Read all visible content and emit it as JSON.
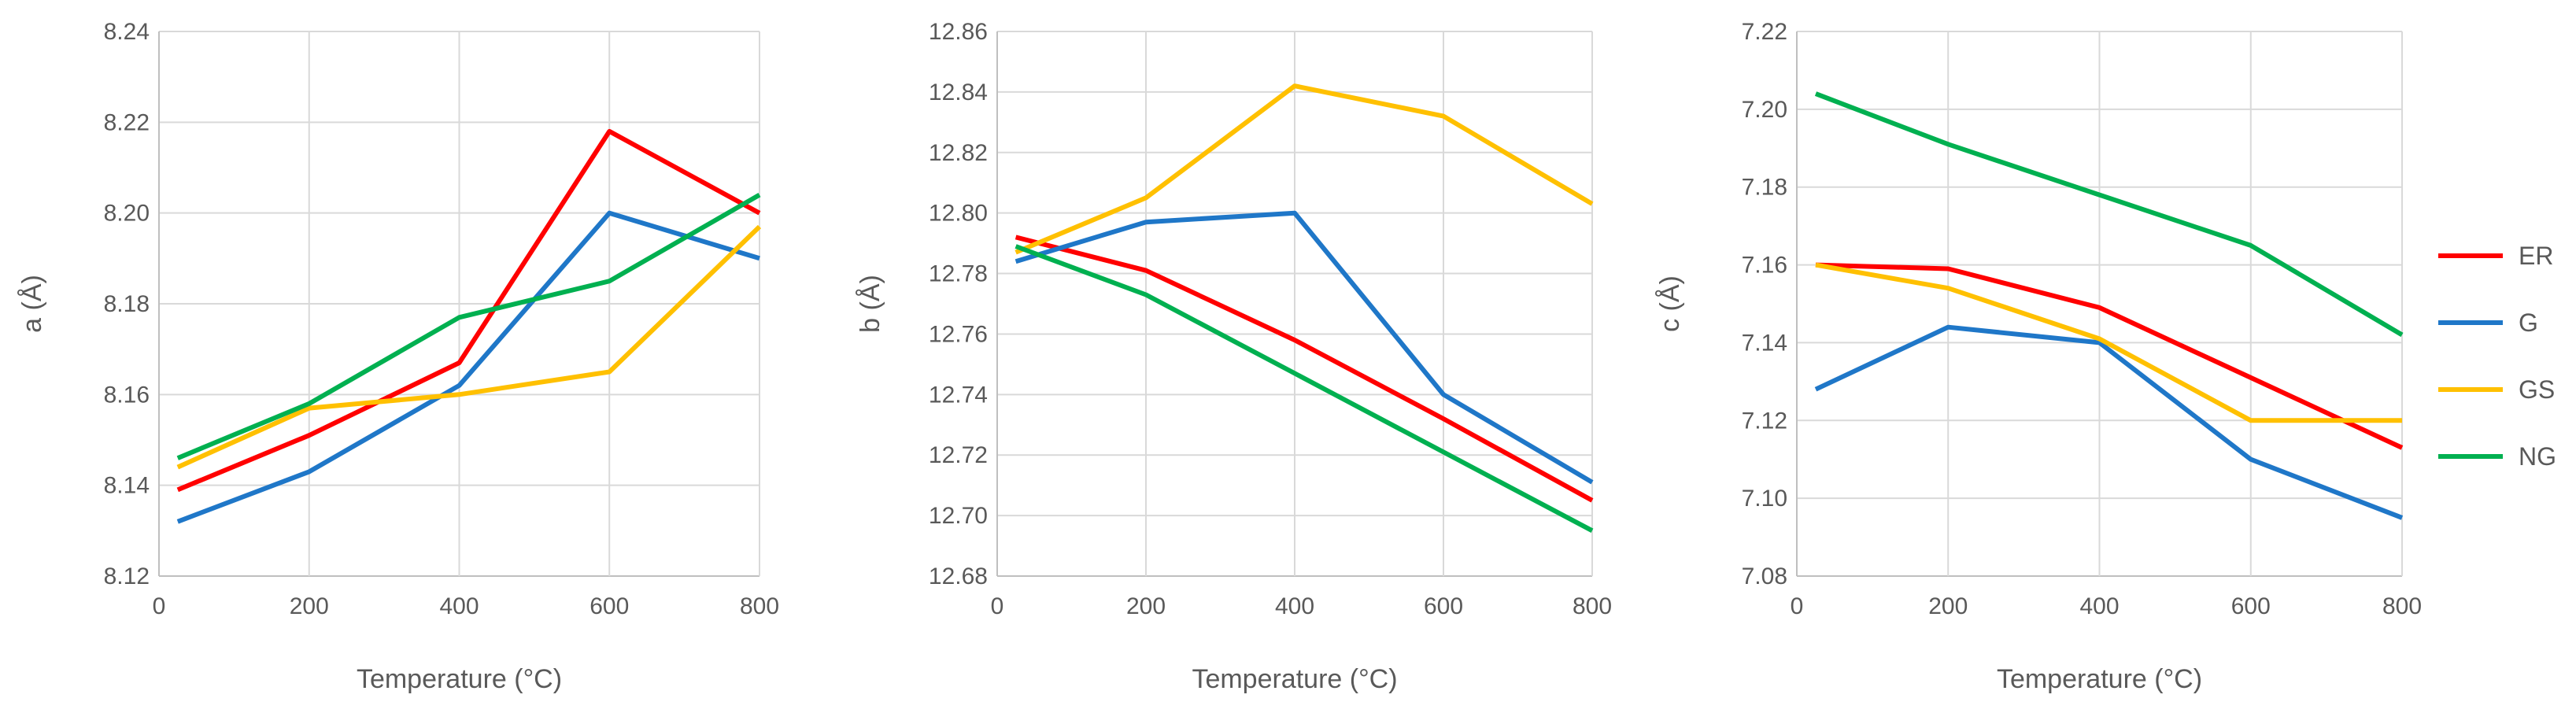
{
  "colors": {
    "ER": "#ff0000",
    "G": "#1f77c8",
    "GS": "#ffc000",
    "NG": "#00b050"
  },
  "legend": [
    "ER",
    "G",
    "GS",
    "NG"
  ],
  "chart_data": [
    {
      "type": "line",
      "xlabel": "Temperature (°C)",
      "ylabel": "a (Å)",
      "xlim": [
        0,
        800
      ],
      "ylim": [
        8.12,
        8.24
      ],
      "xticks": [
        0,
        200,
        400,
        600,
        800
      ],
      "xtick_labels": [
        "0",
        "200",
        "400",
        "600",
        "800"
      ],
      "yticks": [
        8.12,
        8.14,
        8.16,
        8.18,
        8.2,
        8.22,
        8.24
      ],
      "ytick_labels": [
        "8.12",
        "8.14",
        "8.16",
        "8.18",
        "8.20",
        "8.22",
        "8.24"
      ],
      "x": [
        25,
        200,
        400,
        600,
        800
      ],
      "series": [
        {
          "name": "ER",
          "values": [
            8.139,
            8.151,
            8.167,
            8.218,
            8.2
          ]
        },
        {
          "name": "G",
          "values": [
            8.132,
            8.143,
            8.162,
            8.2,
            8.19
          ]
        },
        {
          "name": "GS",
          "values": [
            8.144,
            8.157,
            8.16,
            8.165,
            8.197
          ]
        },
        {
          "name": "NG",
          "values": [
            8.146,
            8.158,
            8.177,
            8.185,
            8.204
          ]
        }
      ]
    },
    {
      "type": "line",
      "xlabel": "Temperature (°C)",
      "ylabel": "b (Å)",
      "xlim": [
        0,
        800
      ],
      "ylim": [
        12.68,
        12.86
      ],
      "xticks": [
        0,
        200,
        400,
        600,
        800
      ],
      "xtick_labels": [
        "0",
        "200",
        "400",
        "600",
        "800"
      ],
      "yticks": [
        12.68,
        12.7,
        12.72,
        12.74,
        12.76,
        12.78,
        12.8,
        12.82,
        12.84,
        12.86
      ],
      "ytick_labels": [
        "12.68",
        "12.70",
        "12.72",
        "12.74",
        "12.76",
        "12.78",
        "12.80",
        "12.82",
        "12.84",
        "12.86"
      ],
      "x": [
        25,
        200,
        400,
        600,
        800
      ],
      "series": [
        {
          "name": "ER",
          "values": [
            12.792,
            12.781,
            12.758,
            12.732,
            12.705
          ]
        },
        {
          "name": "G",
          "values": [
            12.784,
            12.797,
            12.8,
            12.74,
            12.711
          ]
        },
        {
          "name": "GS",
          "values": [
            12.787,
            12.805,
            12.842,
            12.832,
            12.803
          ]
        },
        {
          "name": "NG",
          "values": [
            12.789,
            12.773,
            12.747,
            12.721,
            12.695
          ]
        }
      ]
    },
    {
      "type": "line",
      "xlabel": "Temperature (°C)",
      "ylabel": "c (Å)",
      "xlim": [
        0,
        800
      ],
      "ylim": [
        7.08,
        7.22
      ],
      "xticks": [
        0,
        200,
        400,
        600,
        800
      ],
      "xtick_labels": [
        "0",
        "200",
        "400",
        "600",
        "800"
      ],
      "yticks": [
        7.08,
        7.1,
        7.12,
        7.14,
        7.16,
        7.18,
        7.2,
        7.22
      ],
      "ytick_labels": [
        "7.08",
        "7.10",
        "7.12",
        "7.14",
        "7.16",
        "7.18",
        "7.20",
        "7.22"
      ],
      "x": [
        25,
        200,
        400,
        600,
        800
      ],
      "series": [
        {
          "name": "ER",
          "values": [
            7.16,
            7.159,
            7.149,
            7.131,
            7.113
          ]
        },
        {
          "name": "G",
          "values": [
            7.128,
            7.144,
            7.14,
            7.11,
            7.095
          ]
        },
        {
          "name": "GS",
          "values": [
            7.16,
            7.154,
            7.141,
            7.12,
            7.12
          ]
        },
        {
          "name": "NG",
          "values": [
            7.204,
            7.191,
            7.178,
            7.165,
            7.142
          ]
        }
      ]
    }
  ]
}
